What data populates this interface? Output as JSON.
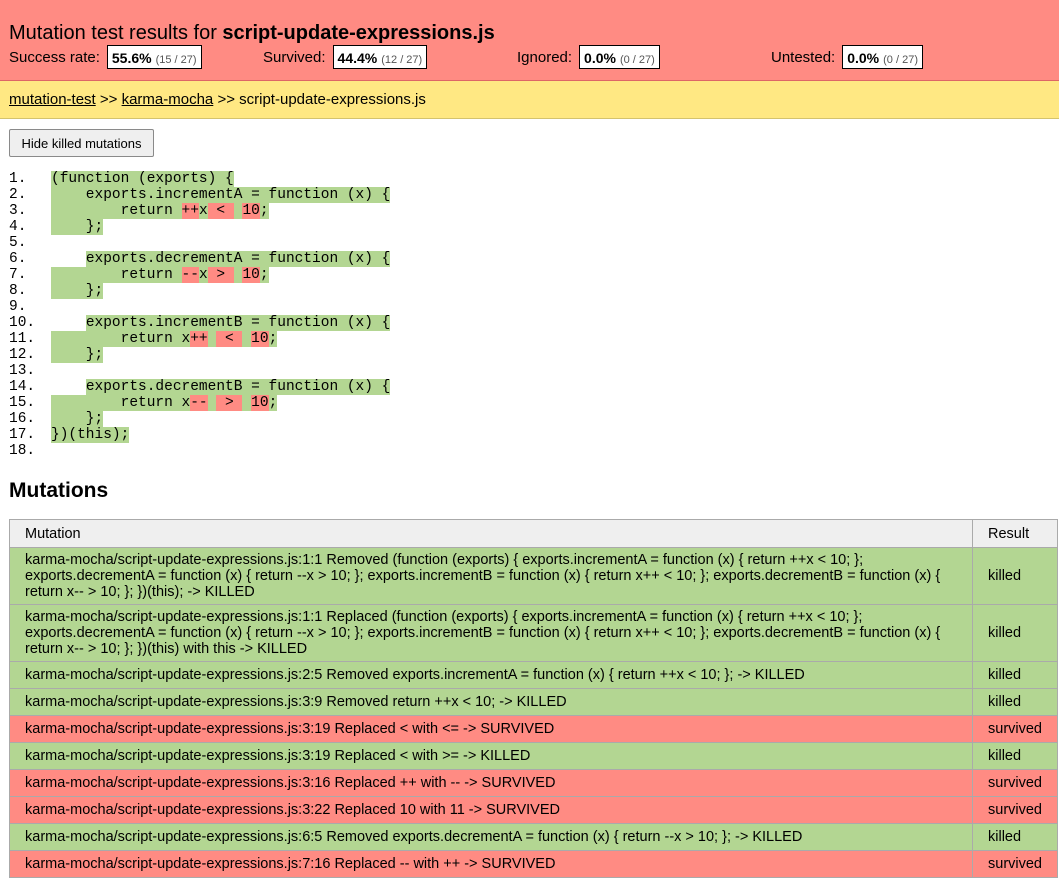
{
  "header": {
    "title_prefix": "Mutation test results for ",
    "title_file": "script-update-expressions.js",
    "stats": [
      {
        "label": "Success rate:",
        "pct": "55.6%",
        "count": "(15 / 27)"
      },
      {
        "label": "Survived:",
        "pct": "44.4%",
        "count": "(12 / 27)"
      },
      {
        "label": "Ignored:",
        "pct": "0.0%",
        "count": "(0 / 27)"
      },
      {
        "label": "Untested:",
        "pct": "0.0%",
        "count": "(0 / 27)"
      }
    ]
  },
  "breadcrumb": {
    "link1": "mutation-test",
    "sep1": " >> ",
    "link2": "karma-mocha",
    "sep2": " >> ",
    "current": "script-update-expressions.js"
  },
  "toggle_button": "Hide killed mutations",
  "code_lines": [
    {
      "n": "1.",
      "segs": [
        [
          "g",
          "(function (exports) {"
        ]
      ]
    },
    {
      "n": "2.",
      "segs": [
        [
          "g",
          "    exports.incrementA = function (x) {"
        ]
      ]
    },
    {
      "n": "3.",
      "segs": [
        [
          "g",
          "        return "
        ],
        [
          "r",
          "++"
        ],
        [
          "g",
          "x"
        ],
        [
          "r",
          " < "
        ],
        [
          "g",
          " "
        ],
        [
          "r",
          "10"
        ],
        [
          "g",
          ";"
        ]
      ]
    },
    {
      "n": "4.",
      "segs": [
        [
          "g",
          "    };"
        ]
      ]
    },
    {
      "n": "5.",
      "segs": []
    },
    {
      "n": "6.",
      "segs": [
        [
          "",
          "    "
        ],
        [
          "g",
          "exports.decrementA = function (x) {"
        ]
      ]
    },
    {
      "n": "7.",
      "segs": [
        [
          "g",
          "        return "
        ],
        [
          "r",
          "--"
        ],
        [
          "g",
          "x"
        ],
        [
          "r",
          " > "
        ],
        [
          "g",
          " "
        ],
        [
          "r",
          "10"
        ],
        [
          "g",
          ";"
        ]
      ]
    },
    {
      "n": "8.",
      "segs": [
        [
          "g",
          "    };"
        ]
      ]
    },
    {
      "n": "9.",
      "segs": []
    },
    {
      "n": "10.",
      "segs": [
        [
          "",
          "    "
        ],
        [
          "g",
          "exports.incrementB = function (x) {"
        ]
      ]
    },
    {
      "n": "11.",
      "segs": [
        [
          "g",
          "        return x"
        ],
        [
          "r",
          "++"
        ],
        [
          "g",
          " "
        ],
        [
          "r",
          " < "
        ],
        [
          "g",
          " "
        ],
        [
          "r",
          "10"
        ],
        [
          "g",
          ";"
        ]
      ]
    },
    {
      "n": "12.",
      "segs": [
        [
          "g",
          "    };"
        ]
      ]
    },
    {
      "n": "13.",
      "segs": []
    },
    {
      "n": "14.",
      "segs": [
        [
          "",
          "    "
        ],
        [
          "g",
          "exports.decrementB = function (x) {"
        ]
      ]
    },
    {
      "n": "15.",
      "segs": [
        [
          "g",
          "        return x"
        ],
        [
          "r",
          "--"
        ],
        [
          "g",
          " "
        ],
        [
          "r",
          " > "
        ],
        [
          "g",
          " "
        ],
        [
          "r",
          "10"
        ],
        [
          "g",
          ";"
        ]
      ]
    },
    {
      "n": "16.",
      "segs": [
        [
          "g",
          "    };"
        ]
      ]
    },
    {
      "n": "17.",
      "segs": [
        [
          "g",
          "})(this);"
        ]
      ]
    },
    {
      "n": "18.",
      "segs": []
    }
  ],
  "mutations_heading": "Mutations",
  "table": {
    "col_mutation": "Mutation",
    "col_result": "Result",
    "rows": [
      {
        "text": "karma-mocha/script-update-expressions.js:1:1 Removed (function (exports) { exports.incrementA = function (x) { return ++x < 10; }; exports.decrementA = function (x) { return --x > 10; }; exports.incrementB = function (x) { return x++ < 10; }; exports.decrementB = function (x) { return x-- > 10; }; })(this); -> KILLED",
        "result": "killed"
      },
      {
        "text": "karma-mocha/script-update-expressions.js:1:1 Replaced (function (exports) { exports.incrementA = function (x) { return ++x < 10; }; exports.decrementA = function (x) { return --x > 10; }; exports.incrementB = function (x) { return x++ < 10; }; exports.decrementB = function (x) { return x-- > 10; }; })(this) with this -> KILLED",
        "result": "killed"
      },
      {
        "text": "karma-mocha/script-update-expressions.js:2:5 Removed exports.incrementA = function (x) { return ++x < 10; }; -> KILLED",
        "result": "killed"
      },
      {
        "text": "karma-mocha/script-update-expressions.js:3:9 Removed return ++x < 10; -> KILLED",
        "result": "killed"
      },
      {
        "text": "karma-mocha/script-update-expressions.js:3:19 Replaced < with <= -> SURVIVED",
        "result": "survived"
      },
      {
        "text": "karma-mocha/script-update-expressions.js:3:19 Replaced < with >= -> KILLED",
        "result": "killed"
      },
      {
        "text": "karma-mocha/script-update-expressions.js:3:16 Replaced ++ with -- -> SURVIVED",
        "result": "survived"
      },
      {
        "text": "karma-mocha/script-update-expressions.js:3:22 Replaced 10 with 11 -> SURVIVED",
        "result": "survived"
      },
      {
        "text": "karma-mocha/script-update-expressions.js:6:5 Removed exports.decrementA = function (x) { return --x > 10; }; -> KILLED",
        "result": "killed"
      },
      {
        "text": "karma-mocha/script-update-expressions.js:7:16 Replaced -- with ++ -> SURVIVED",
        "result": "survived"
      }
    ]
  },
  "colors": {
    "header_bg": "#ff8b83",
    "breadcrumb_bg": "#ffe883",
    "killed_bg": "#b3d692",
    "survived_bg": "#ff8b83"
  }
}
